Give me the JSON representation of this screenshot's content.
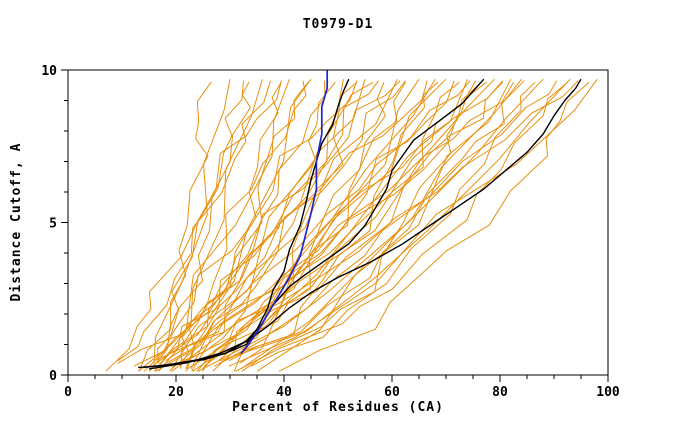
{
  "page": {
    "background": "#ffffff"
  },
  "chart_data": {
    "type": "line",
    "title": "T0979-D1",
    "xlabel": "Percent of Residues (CA)",
    "ylabel": "Distance Cutoff, A",
    "xlim": [
      0,
      100
    ],
    "ylim": [
      0,
      10
    ],
    "x_major_ticks": [
      0,
      20,
      40,
      60,
      80,
      100
    ],
    "x_minor_step": 5,
    "y_major_ticks": [
      0,
      5,
      10
    ],
    "y_minor_step": 1,
    "grid": false,
    "legend": "none",
    "colors": {
      "model": "#e8900e",
      "highlight": "#000000",
      "selected": "#2222cc",
      "frame": "#000000",
      "text": "#000000",
      "background": "#ffffff"
    },
    "model_series_ys": [
      0.2,
      1.5,
      3,
      5,
      7,
      8.5,
      9.7
    ],
    "model_series_xs": [
      [
        15,
        19,
        20,
        23,
        25,
        26,
        27
      ],
      [
        15,
        18,
        21,
        24,
        26,
        28,
        30
      ],
      [
        16,
        18,
        21,
        24,
        27,
        30,
        32
      ],
      [
        15,
        20,
        24,
        28,
        30,
        32,
        34
      ],
      [
        16,
        21,
        24,
        28,
        31,
        34,
        36
      ],
      [
        11,
        14,
        18,
        24,
        30,
        34,
        37
      ],
      [
        20,
        26,
        30,
        33,
        36,
        38,
        40
      ],
      [
        15,
        21,
        25,
        31,
        36,
        39,
        41
      ],
      [
        19,
        22,
        26,
        31,
        36,
        40,
        43
      ],
      [
        16,
        24,
        30,
        35,
        39,
        42,
        45
      ],
      [
        18,
        24,
        29,
        34,
        39,
        43,
        45
      ],
      [
        21,
        24,
        28,
        34,
        40,
        44,
        47
      ],
      [
        19,
        28,
        34,
        39,
        44,
        47,
        50
      ],
      [
        21,
        28,
        33,
        39,
        45,
        48,
        51
      ],
      [
        13,
        18,
        25,
        33,
        41,
        48,
        53
      ],
      [
        27,
        35,
        40,
        45,
        50,
        52,
        54
      ],
      [
        18,
        26,
        33,
        40,
        47,
        52,
        55
      ],
      [
        19,
        24,
        30,
        38,
        46,
        52,
        57
      ],
      [
        29,
        38,
        44,
        49,
        54,
        57,
        59
      ],
      [
        16,
        26,
        34,
        43,
        51,
        57,
        61
      ],
      [
        21,
        27,
        33,
        41,
        50,
        57,
        62
      ],
      [
        23,
        35,
        42,
        50,
        56,
        60,
        63
      ],
      [
        28,
        36,
        43,
        50,
        57,
        62,
        65
      ],
      [
        15,
        22,
        30,
        41,
        52,
        60,
        66
      ],
      [
        28,
        40,
        48,
        55,
        62,
        66,
        69
      ],
      [
        21,
        31,
        40,
        50,
        59,
        65,
        70
      ],
      [
        27,
        33,
        40,
        49,
        58,
        65,
        71
      ],
      [
        23,
        38,
        47,
        57,
        64,
        69,
        73
      ],
      [
        25,
        36,
        45,
        55,
        63,
        69,
        74
      ],
      [
        19,
        27,
        35,
        47,
        59,
        67,
        74
      ],
      [
        34,
        47,
        55,
        63,
        70,
        74,
        77
      ],
      [
        20,
        33,
        43,
        55,
        66,
        73,
        79
      ],
      [
        24,
        32,
        41,
        52,
        64,
        73,
        80
      ],
      [
        28,
        44,
        55,
        65,
        73,
        79,
        83
      ],
      [
        32,
        43,
        52,
        63,
        71,
        79,
        84
      ],
      [
        18,
        27,
        38,
        51,
        65,
        76,
        84
      ],
      [
        33,
        49,
        59,
        69,
        78,
        83,
        87
      ],
      [
        25,
        39,
        50,
        63,
        74,
        82,
        88
      ],
      [
        30,
        38,
        48,
        60,
        73,
        83,
        90
      ],
      [
        31,
        49,
        61,
        73,
        82,
        88,
        93
      ],
      [
        30,
        44,
        55,
        68,
        79,
        87,
        93
      ],
      [
        24,
        33,
        44,
        59,
        74,
        85,
        94
      ],
      [
        40,
        56,
        67,
        78,
        87,
        92,
        97
      ],
      [
        28,
        43,
        56,
        70,
        83,
        92,
        98
      ],
      [
        7,
        11,
        16,
        23,
        30,
        35,
        39
      ],
      [
        11,
        21,
        30,
        39,
        47,
        53,
        57
      ],
      [
        22,
        30,
        38,
        47,
        56,
        63,
        68
      ],
      [
        26,
        34,
        43,
        53,
        62,
        69,
        75
      ],
      [
        20,
        29,
        39,
        51,
        62,
        71,
        78
      ],
      [
        35,
        45,
        54,
        64,
        72,
        78,
        82
      ],
      [
        14,
        20,
        28,
        37,
        47,
        55,
        61
      ],
      [
        24,
        35,
        46,
        58,
        68,
        76,
        81
      ]
    ],
    "highlight_series": [
      {
        "points": [
          [
            13,
            0.25
          ],
          [
            17,
            0.3
          ],
          [
            21,
            0.4
          ],
          [
            25,
            0.5
          ],
          [
            29,
            0.7
          ],
          [
            33,
            1.0
          ],
          [
            35,
            1.5
          ],
          [
            37,
            2.2
          ],
          [
            38,
            2.8
          ],
          [
            40,
            3.4
          ],
          [
            41,
            4.1
          ],
          [
            43,
            4.9
          ],
          [
            44,
            5.6
          ],
          [
            45,
            6.4
          ],
          [
            46,
            7.0
          ],
          [
            47,
            7.6
          ],
          [
            49,
            8.2
          ],
          [
            50,
            8.8
          ],
          [
            51,
            9.3
          ],
          [
            52,
            9.7
          ]
        ]
      },
      {
        "points": [
          [
            14,
            0.25
          ],
          [
            19,
            0.35
          ],
          [
            24,
            0.5
          ],
          [
            29,
            0.7
          ],
          [
            33,
            1.1
          ],
          [
            36,
            1.7
          ],
          [
            38,
            2.3
          ],
          [
            41,
            2.9
          ],
          [
            44,
            3.3
          ],
          [
            48,
            3.8
          ],
          [
            52,
            4.3
          ],
          [
            55,
            4.9
          ],
          [
            57,
            5.5
          ],
          [
            59,
            6.1
          ],
          [
            60,
            6.7
          ],
          [
            62,
            7.2
          ],
          [
            64,
            7.7
          ],
          [
            67,
            8.1
          ],
          [
            70,
            8.5
          ],
          [
            73,
            8.9
          ],
          [
            75,
            9.3
          ],
          [
            77,
            9.7
          ]
        ]
      },
      {
        "points": [
          [
            15,
            0.2
          ],
          [
            22,
            0.4
          ],
          [
            28,
            0.7
          ],
          [
            33,
            1.1
          ],
          [
            37,
            1.6
          ],
          [
            41,
            2.2
          ],
          [
            45,
            2.7
          ],
          [
            50,
            3.2
          ],
          [
            56,
            3.7
          ],
          [
            62,
            4.3
          ],
          [
            67,
            4.9
          ],
          [
            72,
            5.5
          ],
          [
            77,
            6.1
          ],
          [
            81,
            6.7
          ],
          [
            85,
            7.3
          ],
          [
            88,
            7.9
          ],
          [
            90,
            8.5
          ],
          [
            92,
            9.0
          ],
          [
            94,
            9.4
          ],
          [
            95,
            9.7
          ]
        ]
      }
    ],
    "selected_series": {
      "points": [
        [
          32,
          0.7
        ],
        [
          33,
          0.9
        ],
        [
          35,
          1.4
        ],
        [
          37,
          2.0
        ],
        [
          39,
          2.6
        ],
        [
          41,
          3.2
        ],
        [
          43,
          3.9
        ],
        [
          44,
          4.6
        ],
        [
          45,
          5.3
        ],
        [
          46,
          6.1
        ],
        [
          46,
          7.0
        ],
        [
          47,
          7.9
        ],
        [
          47,
          8.8
        ],
        [
          48,
          9.4
        ],
        [
          48,
          10.0
        ]
      ]
    }
  }
}
